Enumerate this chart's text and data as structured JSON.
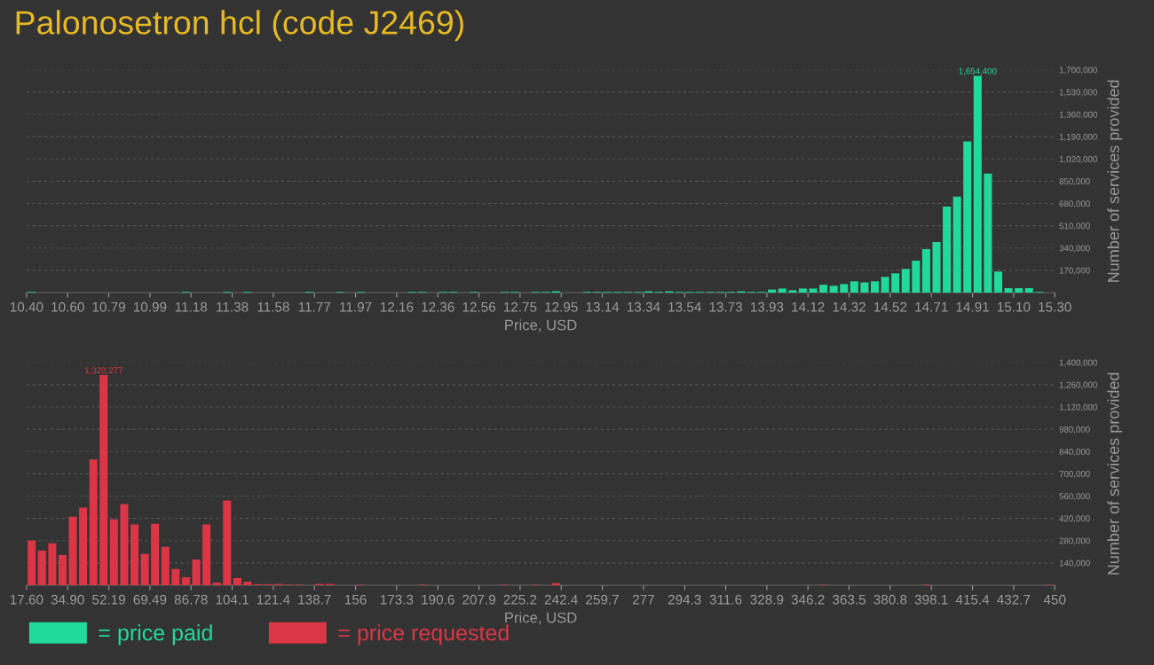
{
  "chart_data": [
    {
      "type": "histogram",
      "title": "Palonosetron hcl (code J2469)",
      "xlabel": "Price, USD",
      "ylabel": "Number of services provided",
      "bins": [
        10.4,
        10.449,
        10.498,
        10.547,
        10.596,
        10.645,
        10.694,
        10.743,
        10.792,
        10.841,
        10.89,
        10.939,
        10.988,
        11.037,
        11.086,
        11.135,
        11.184,
        11.233,
        11.282,
        11.331,
        11.38,
        11.429,
        11.478,
        11.527,
        11.576,
        11.625,
        11.674,
        11.723,
        11.772,
        11.821,
        11.87,
        11.919,
        11.968,
        12.017,
        12.066,
        12.115,
        12.164,
        12.213,
        12.262,
        12.311,
        12.36,
        12.409,
        12.458,
        12.507,
        12.556,
        12.605,
        12.654,
        12.703,
        12.752,
        12.801,
        12.85,
        12.899,
        12.948,
        12.997,
        13.046,
        13.095,
        13.144,
        13.193,
        13.242,
        13.291,
        13.34,
        13.389,
        13.438,
        13.487,
        13.536,
        13.585,
        13.634,
        13.683,
        13.732,
        13.781,
        13.83,
        13.879,
        13.928,
        13.977,
        14.026,
        14.075,
        14.124,
        14.173,
        14.222,
        14.271,
        14.32,
        14.369,
        14.418,
        14.467,
        14.516,
        14.565,
        14.614,
        14.663,
        14.712,
        14.761,
        14.81,
        14.859,
        14.908,
        14.957,
        15.006,
        15.055,
        15.104,
        15.153,
        15.202,
        15.251,
        15.3
      ],
      "series": [
        {
          "name": "= price paid",
          "color": "#21d99b",
          "values": [
            5000,
            0,
            0,
            0,
            0,
            0,
            0,
            0,
            0,
            0,
            0,
            0,
            0,
            0,
            0,
            5000,
            0,
            0,
            0,
            5000,
            0,
            5000,
            0,
            0,
            0,
            0,
            0,
            5000,
            0,
            0,
            5000,
            0,
            5000,
            0,
            0,
            0,
            0,
            5000,
            5000,
            0,
            5000,
            5000,
            0,
            5000,
            0,
            0,
            5000,
            5000,
            0,
            5000,
            5000,
            10000,
            0,
            0,
            5000,
            5000,
            5000,
            5000,
            5000,
            5000,
            10000,
            5000,
            10000,
            5000,
            5000,
            5000,
            5000,
            5000,
            5000,
            10000,
            5000,
            5000,
            23000,
            31000,
            18000,
            31000,
            31000,
            60000,
            52000,
            65000,
            86000,
            78000,
            86000,
            120000,
            147000,
            181000,
            243000,
            331000,
            385000,
            657000,
            732000,
            1154000,
            1654400,
            909000,
            161000,
            34000,
            34000,
            34000,
            5000,
            0
          ],
          "value_labels": [
            null,
            null,
            null,
            null,
            null,
            null,
            null,
            null,
            null,
            null,
            null,
            null,
            null,
            null,
            null,
            null,
            null,
            null,
            null,
            null,
            null,
            null,
            null,
            null,
            null,
            null,
            null,
            null,
            null,
            null,
            null,
            null,
            null,
            null,
            null,
            null,
            null,
            null,
            null,
            null,
            null,
            null,
            null,
            null,
            null,
            null,
            null,
            null,
            null,
            null,
            null,
            null,
            null,
            null,
            null,
            null,
            null,
            null,
            null,
            null,
            null,
            null,
            null,
            null,
            null,
            null,
            null,
            null,
            null,
            null,
            null,
            null,
            null,
            null,
            null,
            null,
            null,
            null,
            null,
            null,
            null,
            null,
            null,
            null,
            null,
            null,
            null,
            null,
            null,
            null,
            null,
            null,
            "1,654,400",
            null,
            null,
            null,
            null,
            null,
            null,
            null
          ]
        }
      ],
      "xlim": [
        10.4,
        15.3
      ],
      "xticks": [
        {
          "value": 10.4,
          "label": "10.40"
        },
        {
          "value": 10.596,
          "label": "10.60"
        },
        {
          "value": 10.792,
          "label": "10.79"
        },
        {
          "value": 10.988,
          "label": "10.99"
        },
        {
          "value": 11.184,
          "label": "11.18"
        },
        {
          "value": 11.38,
          "label": "11.38"
        },
        {
          "value": 11.576,
          "label": "11.58"
        },
        {
          "value": 11.772,
          "label": "11.77"
        },
        {
          "value": 11.968,
          "label": "11.97"
        },
        {
          "value": 12.164,
          "label": "12.16"
        },
        {
          "value": 12.36,
          "label": "12.36"
        },
        {
          "value": 12.556,
          "label": "12.56"
        },
        {
          "value": 12.752,
          "label": "12.75"
        },
        {
          "value": 12.948,
          "label": "12.95"
        },
        {
          "value": 13.144,
          "label": "13.14"
        },
        {
          "value": 13.34,
          "label": "13.34"
        },
        {
          "value": 13.536,
          "label": "13.54"
        },
        {
          "value": 13.732,
          "label": "13.73"
        },
        {
          "value": 13.928,
          "label": "13.93"
        },
        {
          "value": 14.124,
          "label": "14.12"
        },
        {
          "value": 14.32,
          "label": "14.32"
        },
        {
          "value": 14.516,
          "label": "14.52"
        },
        {
          "value": 14.712,
          "label": "14.71"
        },
        {
          "value": 14.908,
          "label": "14.91"
        },
        {
          "value": 15.104,
          "label": "15.10"
        },
        {
          "value": 15.3,
          "label": "15.30"
        }
      ],
      "ylim": [
        0,
        1700000
      ],
      "yticks": [
        {
          "value": 170000,
          "label": "170,000"
        },
        {
          "value": 340000,
          "label": "340,000"
        },
        {
          "value": 510000,
          "label": "510,000"
        },
        {
          "value": 680000,
          "label": "680,000"
        },
        {
          "value": 850000,
          "label": "850,000"
        },
        {
          "value": 1020000,
          "label": "1,020,000"
        },
        {
          "value": 1190000,
          "label": "1,190,000"
        },
        {
          "value": 1360000,
          "label": "1,360,000"
        },
        {
          "value": 1530000,
          "label": "1,530,000"
        },
        {
          "value": 1700000,
          "label": "1,700,000"
        }
      ],
      "grid": "y",
      "legend": "bottom"
    },
    {
      "type": "histogram",
      "xlabel": "Price, USD",
      "ylabel": "Number of services provided",
      "bins": [
        17.6,
        21.924,
        26.248,
        30.572,
        34.896,
        39.22,
        43.544,
        47.868,
        52.192,
        56.516,
        60.84,
        65.164,
        69.488,
        73.812,
        78.136,
        82.46,
        86.784,
        91.108,
        95.432,
        99.756,
        104.08,
        108.404,
        112.728,
        117.052,
        121.376,
        125.7,
        130.024,
        134.348,
        138.672,
        142.996,
        147.32,
        151.644,
        155.968,
        160.292,
        164.616,
        168.94,
        173.264,
        177.588,
        181.912,
        186.236,
        190.56,
        194.884,
        199.208,
        203.532,
        207.856,
        212.18,
        216.504,
        220.828,
        225.152,
        229.476,
        233.8,
        238.124,
        242.448,
        246.772,
        251.096,
        255.42,
        259.744,
        264.068,
        268.392,
        272.716,
        277.04,
        281.364,
        285.688,
        290.012,
        294.336,
        298.66,
        302.984,
        307.308,
        311.632,
        315.956,
        320.28,
        324.604,
        328.928,
        333.252,
        337.576,
        341.9,
        346.224,
        350.548,
        354.872,
        359.196,
        363.52,
        367.844,
        372.168,
        376.492,
        380.816,
        385.14,
        389.464,
        393.788,
        398.112,
        402.436,
        406.76,
        411.084,
        415.408,
        419.732,
        424.056,
        428.38,
        432.704,
        437.028,
        441.352,
        445.676,
        450
      ],
      "series": [
        {
          "name": "= price requested",
          "color": "#dc3545",
          "values": [
            280000,
            218000,
            263000,
            190000,
            431000,
            487000,
            790000,
            1320277,
            414000,
            510000,
            381000,
            196000,
            386000,
            241000,
            101000,
            50000,
            162000,
            381000,
            17000,
            532000,
            45000,
            22000,
            6000,
            6000,
            8000,
            3000,
            3000,
            0,
            8000,
            8000,
            0,
            0,
            3000,
            0,
            0,
            0,
            0,
            0,
            3000,
            0,
            0,
            0,
            0,
            0,
            0,
            0,
            3000,
            0,
            0,
            3000,
            0,
            13000,
            0,
            0,
            0,
            0,
            0,
            0,
            0,
            0,
            0,
            0,
            0,
            0,
            0,
            0,
            0,
            0,
            0,
            0,
            0,
            0,
            0,
            0,
            0,
            0,
            0,
            3000,
            0,
            0,
            0,
            0,
            0,
            0,
            0,
            0,
            0,
            3000,
            0,
            0,
            0,
            0,
            0,
            0,
            0,
            0,
            0,
            0,
            0,
            3000
          ],
          "value_labels": [
            null,
            null,
            null,
            null,
            null,
            null,
            null,
            "1,320,277",
            null,
            null,
            null,
            null,
            null,
            null,
            null,
            null,
            null,
            null,
            null,
            null,
            null,
            null,
            null,
            null,
            null,
            null,
            null,
            null,
            null,
            null,
            null,
            null,
            null,
            null,
            null,
            null,
            null,
            null,
            null,
            null,
            null,
            null,
            null,
            null,
            null,
            null,
            null,
            null,
            null,
            null,
            null,
            null,
            null,
            null,
            null,
            null,
            null,
            null,
            null,
            null,
            null,
            null,
            null,
            null,
            null,
            null,
            null,
            null,
            null,
            null,
            null,
            null,
            null,
            null,
            null,
            null,
            null,
            null,
            null,
            null,
            null,
            null,
            null,
            null,
            null,
            null,
            null,
            null,
            null,
            null,
            null,
            null,
            null,
            null,
            null,
            null,
            null,
            null,
            null,
            null
          ]
        }
      ],
      "xlim": [
        17.6,
        450
      ],
      "xticks": [
        {
          "value": 17.6,
          "label": "17.60"
        },
        {
          "value": 34.896,
          "label": "34.90"
        },
        {
          "value": 52.192,
          "label": "52.19"
        },
        {
          "value": 69.488,
          "label": "69.49"
        },
        {
          "value": 86.784,
          "label": "86.78"
        },
        {
          "value": 104.08,
          "label": "104.1"
        },
        {
          "value": 121.376,
          "label": "121.4"
        },
        {
          "value": 138.672,
          "label": "138.7"
        },
        {
          "value": 155.968,
          "label": "156"
        },
        {
          "value": 173.264,
          "label": "173.3"
        },
        {
          "value": 190.56,
          "label": "190.6"
        },
        {
          "value": 207.856,
          "label": "207.9"
        },
        {
          "value": 225.152,
          "label": "225.2"
        },
        {
          "value": 242.448,
          "label": "242.4"
        },
        {
          "value": 259.744,
          "label": "259.7"
        },
        {
          "value": 277.04,
          "label": "277"
        },
        {
          "value": 294.336,
          "label": "294.3"
        },
        {
          "value": 311.632,
          "label": "311.6"
        },
        {
          "value": 328.928,
          "label": "328.9"
        },
        {
          "value": 346.224,
          "label": "346.2"
        },
        {
          "value": 363.52,
          "label": "363.5"
        },
        {
          "value": 380.816,
          "label": "380.8"
        },
        {
          "value": 398.112,
          "label": "398.1"
        },
        {
          "value": 415.408,
          "label": "415.4"
        },
        {
          "value": 432.704,
          "label": "432.7"
        },
        {
          "value": 450,
          "label": "450"
        }
      ],
      "ylim": [
        0,
        1400000
      ],
      "yticks": [
        {
          "value": 140000,
          "label": "140,000"
        },
        {
          "value": 280000,
          "label": "280,000"
        },
        {
          "value": 420000,
          "label": "420,000"
        },
        {
          "value": 560000,
          "label": "560,000"
        },
        {
          "value": 700000,
          "label": "700,000"
        },
        {
          "value": 840000,
          "label": "840,000"
        },
        {
          "value": 980000,
          "label": "980,000"
        },
        {
          "value": 1120000,
          "label": "1,120,000"
        },
        {
          "value": 1260000,
          "label": "1,260,000"
        },
        {
          "value": 1400000,
          "label": "1,400,000"
        }
      ],
      "grid": "y",
      "legend": "bottom"
    }
  ]
}
